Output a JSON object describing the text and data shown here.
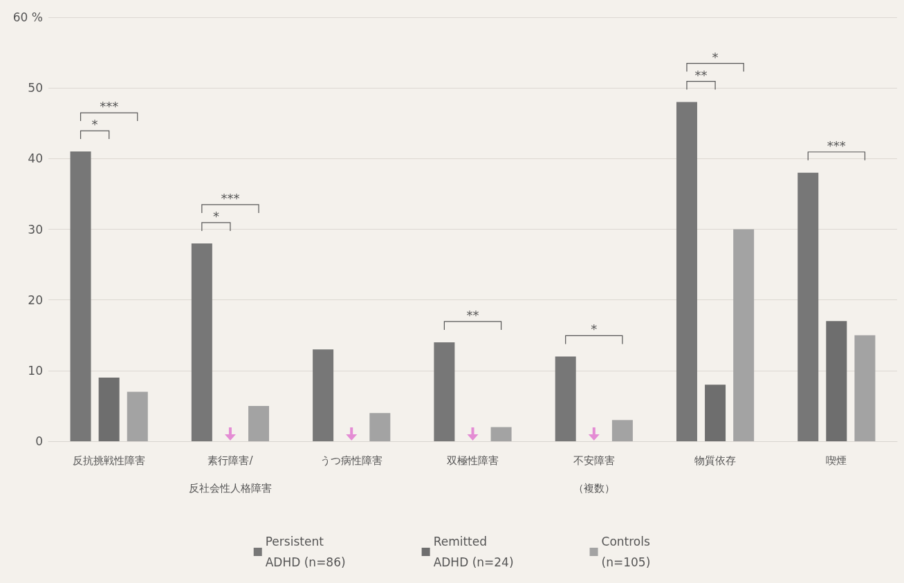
{
  "chart_data": {
    "type": "bar",
    "categories": [
      "反抗挑戦性障害",
      "素行障害/反社会性人格障害",
      "うつ病性障害",
      "双極性障害",
      "不安障害（複数）",
      "物質依存",
      "喫煙"
    ],
    "series": [
      {
        "name": "Persistent\nADHD (n=86)",
        "color": "#777777",
        "values": [
          41,
          28,
          13,
          14,
          12,
          48,
          38
        ]
      },
      {
        "name": "Remitted\nADHD (n=24)",
        "color": "#6e6e6e",
        "values": [
          9,
          0,
          0,
          0,
          0,
          8,
          17
        ]
      },
      {
        "name": "Controls\n(n=105)",
        "color": "#a3a3a3",
        "values": [
          7,
          5,
          4,
          2,
          3,
          30,
          15
        ]
      }
    ],
    "ylim": [
      0,
      60
    ],
    "yticks": [
      0,
      10,
      20,
      30,
      40,
      50,
      {
        "value": 60,
        "label": "60 %"
      }
    ],
    "grid": "y",
    "legend": "bottom",
    "annotations": [
      "*",
      "***",
      "*",
      "***",
      "**",
      "*",
      "**",
      "*",
      "***"
    ]
  }
}
